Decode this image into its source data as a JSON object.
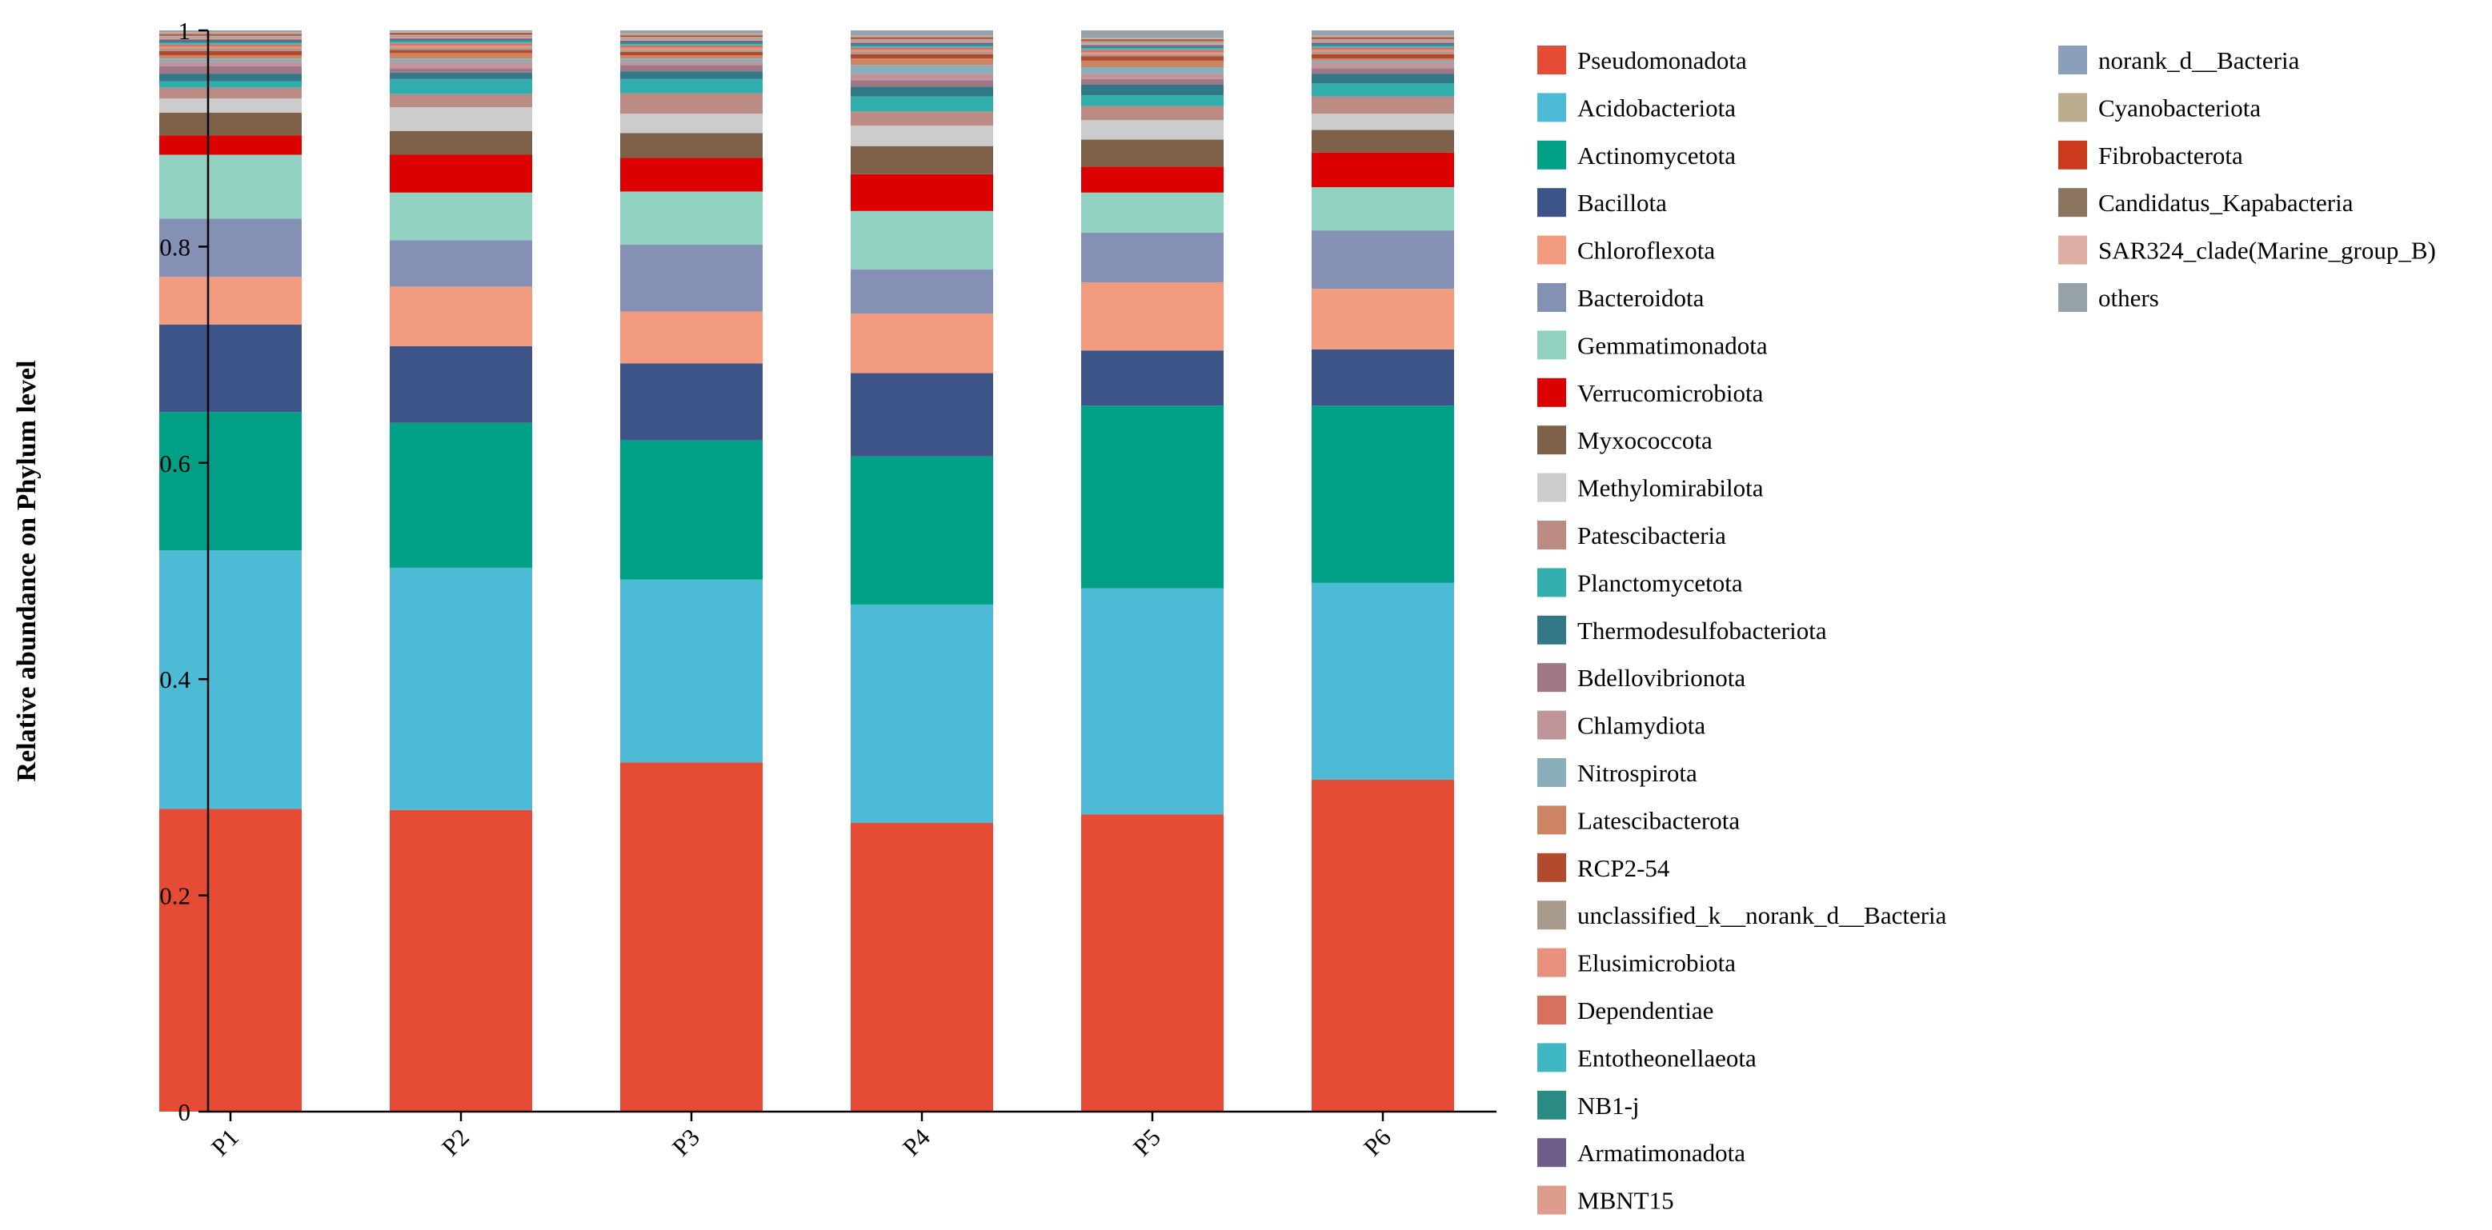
{
  "chart_data": {
    "type": "bar",
    "stacked": true,
    "title": "",
    "xlabel": "",
    "ylabel": "Relative abundance on Phylum level",
    "ylim": [
      0,
      1
    ],
    "yticks": [
      "0",
      "0.2",
      "0.4",
      "0.6",
      "0.8",
      "1"
    ],
    "ytick_values": [
      0,
      0.2,
      0.4,
      0.6,
      0.8,
      1
    ],
    "categories": [
      "P1",
      "P2",
      "P3",
      "P4",
      "P5",
      "P6"
    ],
    "legend_position": "right",
    "series": [
      {
        "name": "Pseudomonadota",
        "color": "#E64B35",
        "values": [
          0.28,
          0.279,
          0.323,
          0.267,
          0.275,
          0.307
        ]
      },
      {
        "name": "Acidobacteriota",
        "color": "#4DBBD5",
        "values": [
          0.239,
          0.224,
          0.169,
          0.202,
          0.209,
          0.182
        ]
      },
      {
        "name": "Actinomycetota",
        "color": "#00A087",
        "values": [
          0.128,
          0.134,
          0.129,
          0.137,
          0.169,
          0.164
        ]
      },
      {
        "name": "Bacillota",
        "color": "#3C5488",
        "values": [
          0.081,
          0.071,
          0.071,
          0.077,
          0.051,
          0.052
        ]
      },
      {
        "name": "Chloroflexota",
        "color": "#F39B7F",
        "values": [
          0.044,
          0.055,
          0.048,
          0.055,
          0.063,
          0.056
        ]
      },
      {
        "name": "Bacteroidota",
        "color": "#8491B4",
        "values": [
          0.054,
          0.043,
          0.062,
          0.041,
          0.046,
          0.054
        ]
      },
      {
        "name": "Gemmatimonadota",
        "color": "#91D1C2",
        "values": [
          0.059,
          0.044,
          0.049,
          0.054,
          0.037,
          0.04
        ]
      },
      {
        "name": "Verrucomicrobiota",
        "color": "#DC0000",
        "values": [
          0.018,
          0.035,
          0.031,
          0.034,
          0.024,
          0.032
        ]
      },
      {
        "name": "Myxococcota",
        "color": "#7E6148",
        "values": [
          0.021,
          0.022,
          0.023,
          0.026,
          0.025,
          0.021
        ]
      },
      {
        "name": "Methylomirabilota",
        "color": "#CCCCCC",
        "values": [
          0.013,
          0.022,
          0.018,
          0.019,
          0.018,
          0.015
        ]
      },
      {
        "name": "Patescibacteria",
        "color": "#BC8B83",
        "values": [
          0.01,
          0.012,
          0.019,
          0.013,
          0.013,
          0.016
        ]
      },
      {
        "name": "Planctomycetota",
        "color": "#32AEAE",
        "values": [
          0.006,
          0.014,
          0.013,
          0.014,
          0.01,
          0.012
        ]
      },
      {
        "name": "Thermodesulfobacteriota",
        "color": "#327887",
        "values": [
          0.007,
          0.006,
          0.007,
          0.009,
          0.01,
          0.009
        ]
      },
      {
        "name": "Bdellovibrionota",
        "color": "#A07786",
        "values": [
          0.007,
          0.004,
          0.006,
          0.006,
          0.005,
          0.005
        ]
      },
      {
        "name": "Chlamydiota",
        "color": "#C09599",
        "values": [
          0.004,
          0.006,
          0.003,
          0.006,
          0.005,
          0.005
        ]
      },
      {
        "name": "Nitrospirota",
        "color": "#8BAFBA",
        "values": [
          0.003,
          0.003,
          0.003,
          0.008,
          0.006,
          0.002
        ]
      },
      {
        "name": "Latescibacterota",
        "color": "#CD8462",
        "values": [
          0.003,
          0.005,
          0.003,
          0.006,
          0.006,
          0.002
        ]
      },
      {
        "name": "RCP2-54",
        "color": "#B24A2D",
        "values": [
          0.004,
          0.003,
          0.003,
          0.004,
          0.004,
          0.004
        ]
      },
      {
        "name": "unclassified_k__norank_d__Bacteria",
        "color": "#A89A8C",
        "values": [
          0.002,
          0.002,
          0.002,
          0.002,
          0.002,
          0.002
        ]
      },
      {
        "name": "Elusimicrobiota",
        "color": "#E8907E",
        "values": [
          0.002,
          0.002,
          0.002,
          0.002,
          0.002,
          0.002
        ]
      },
      {
        "name": "Dependentiae",
        "color": "#D8705E",
        "values": [
          0.002,
          0.002,
          0.002,
          0.002,
          0.002,
          0.002
        ]
      },
      {
        "name": "Entotheonellaeota",
        "color": "#3FB7C2",
        "values": [
          0.0015,
          0.0015,
          0.0015,
          0.0015,
          0.0015,
          0.0015
        ]
      },
      {
        "name": "NB1-j",
        "color": "#2A8B84",
        "values": [
          0.0015,
          0.0015,
          0.0015,
          0.0015,
          0.0015,
          0.0015
        ]
      },
      {
        "name": "Armatimonadota",
        "color": "#6E5E8A",
        "values": [
          0.0015,
          0.0015,
          0.0015,
          0.0015,
          0.0015,
          0.0015
        ]
      },
      {
        "name": "MBNT15",
        "color": "#DE9C8C",
        "values": [
          0.0015,
          0.0015,
          0.0015,
          0.0015,
          0.0015,
          0.0015
        ]
      },
      {
        "name": "norank_d__Bacteria",
        "color": "#8A9FBA",
        "values": [
          0.001,
          0.001,
          0.001,
          0.001,
          0.001,
          0.001
        ]
      },
      {
        "name": "Cyanobacteriota",
        "color": "#BBAE8E",
        "values": [
          0.001,
          0.001,
          0.001,
          0.001,
          0.001,
          0.001
        ]
      },
      {
        "name": "Fibrobacterota",
        "color": "#CC3A1E",
        "values": [
          0.001,
          0.001,
          0.001,
          0.001,
          0.001,
          0.001
        ]
      },
      {
        "name": "Candidatus_Kapabacteria",
        "color": "#8C7560",
        "values": [
          0.001,
          0.001,
          0.001,
          0.001,
          0.001,
          0.001
        ]
      },
      {
        "name": "SAR324_clade(Marine_group_B)",
        "color": "#DDAEA3",
        "values": [
          0.001,
          0.001,
          0.001,
          0.001,
          0.001,
          0.001
        ]
      },
      {
        "name": "others",
        "color": "#96A2A8",
        "values": [
          0.002,
          0.001,
          0.003,
          0.005,
          0.007,
          0.005
        ]
      }
    ]
  }
}
